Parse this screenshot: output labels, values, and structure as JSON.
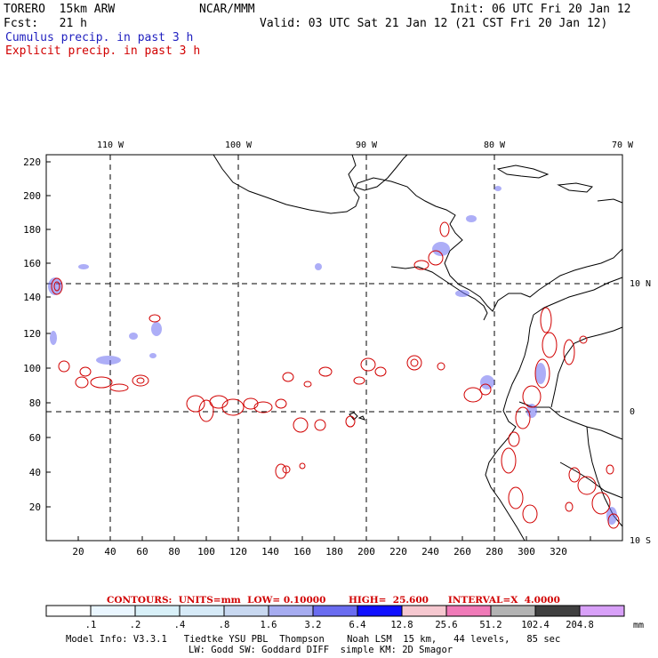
{
  "header": {
    "model": "TORERO  15km ARW",
    "org": "NCAR/MMM",
    "init": "Init: 06 UTC Fri 20 Jan 12",
    "fcst": "Fcst:   21 h",
    "valid": "Valid: 03 UTC Sat 21 Jan 12 (21 CST Fri 20 Jan 12)",
    "legend_cumulus": "Cumulus precip. in past 3 h",
    "legend_explicit": "Explicit precip. in past 3 h"
  },
  "colors": {
    "cumulus": "#1f1fbf",
    "explicit": "#d10000",
    "ocean_bg": "#ffffff",
    "coastline": "#000000"
  },
  "map": {
    "lon_labels": [
      "110 W",
      "100 W",
      "90 W",
      "80 W",
      "70 W"
    ],
    "lat_labels": [
      "10 N",
      "0",
      "10 S"
    ],
    "y_ticks": [
      "220",
      "200",
      "180",
      "160",
      "140",
      "120",
      "100",
      "80",
      "60",
      "40",
      "20"
    ],
    "x_ticks": [
      "20",
      "40",
      "60",
      "80",
      "100",
      "120",
      "140",
      "160",
      "180",
      "200",
      "220",
      "240",
      "260",
      "280",
      "300",
      "320"
    ]
  },
  "contours": {
    "label": "CONTOURS:  UNITS=mm  LOW= 0.10000       HIGH=  25.600      INTERVAL=X  4.0000"
  },
  "colorbar": {
    "unit": "mm",
    "labels": [
      ".1",
      ".2",
      ".4",
      ".8",
      "1.6",
      "3.2",
      "6.4",
      "12.8",
      "25.6",
      "51.2",
      "102.4",
      "204.8"
    ],
    "colors": [
      "#ffffff",
      "#eaf6ff",
      "#d8f0f8",
      "#d6eaf7",
      "#c8d8f0",
      "#a6acf0",
      "#6a6cf0",
      "#1010ff",
      "#f6c8d0",
      "#f07ab8",
      "#b3b3b3",
      "#404040",
      "#d8a0f8"
    ]
  },
  "footer": {
    "line1": "Model Info: V3.3.1   Tiedtke YSU PBL  Thompson    Noah LSM  15 km,   44 levels,   85 sec",
    "line2": "LW: Godd SW: Goddard DIFF  simple KM: 2D Smagor"
  }
}
